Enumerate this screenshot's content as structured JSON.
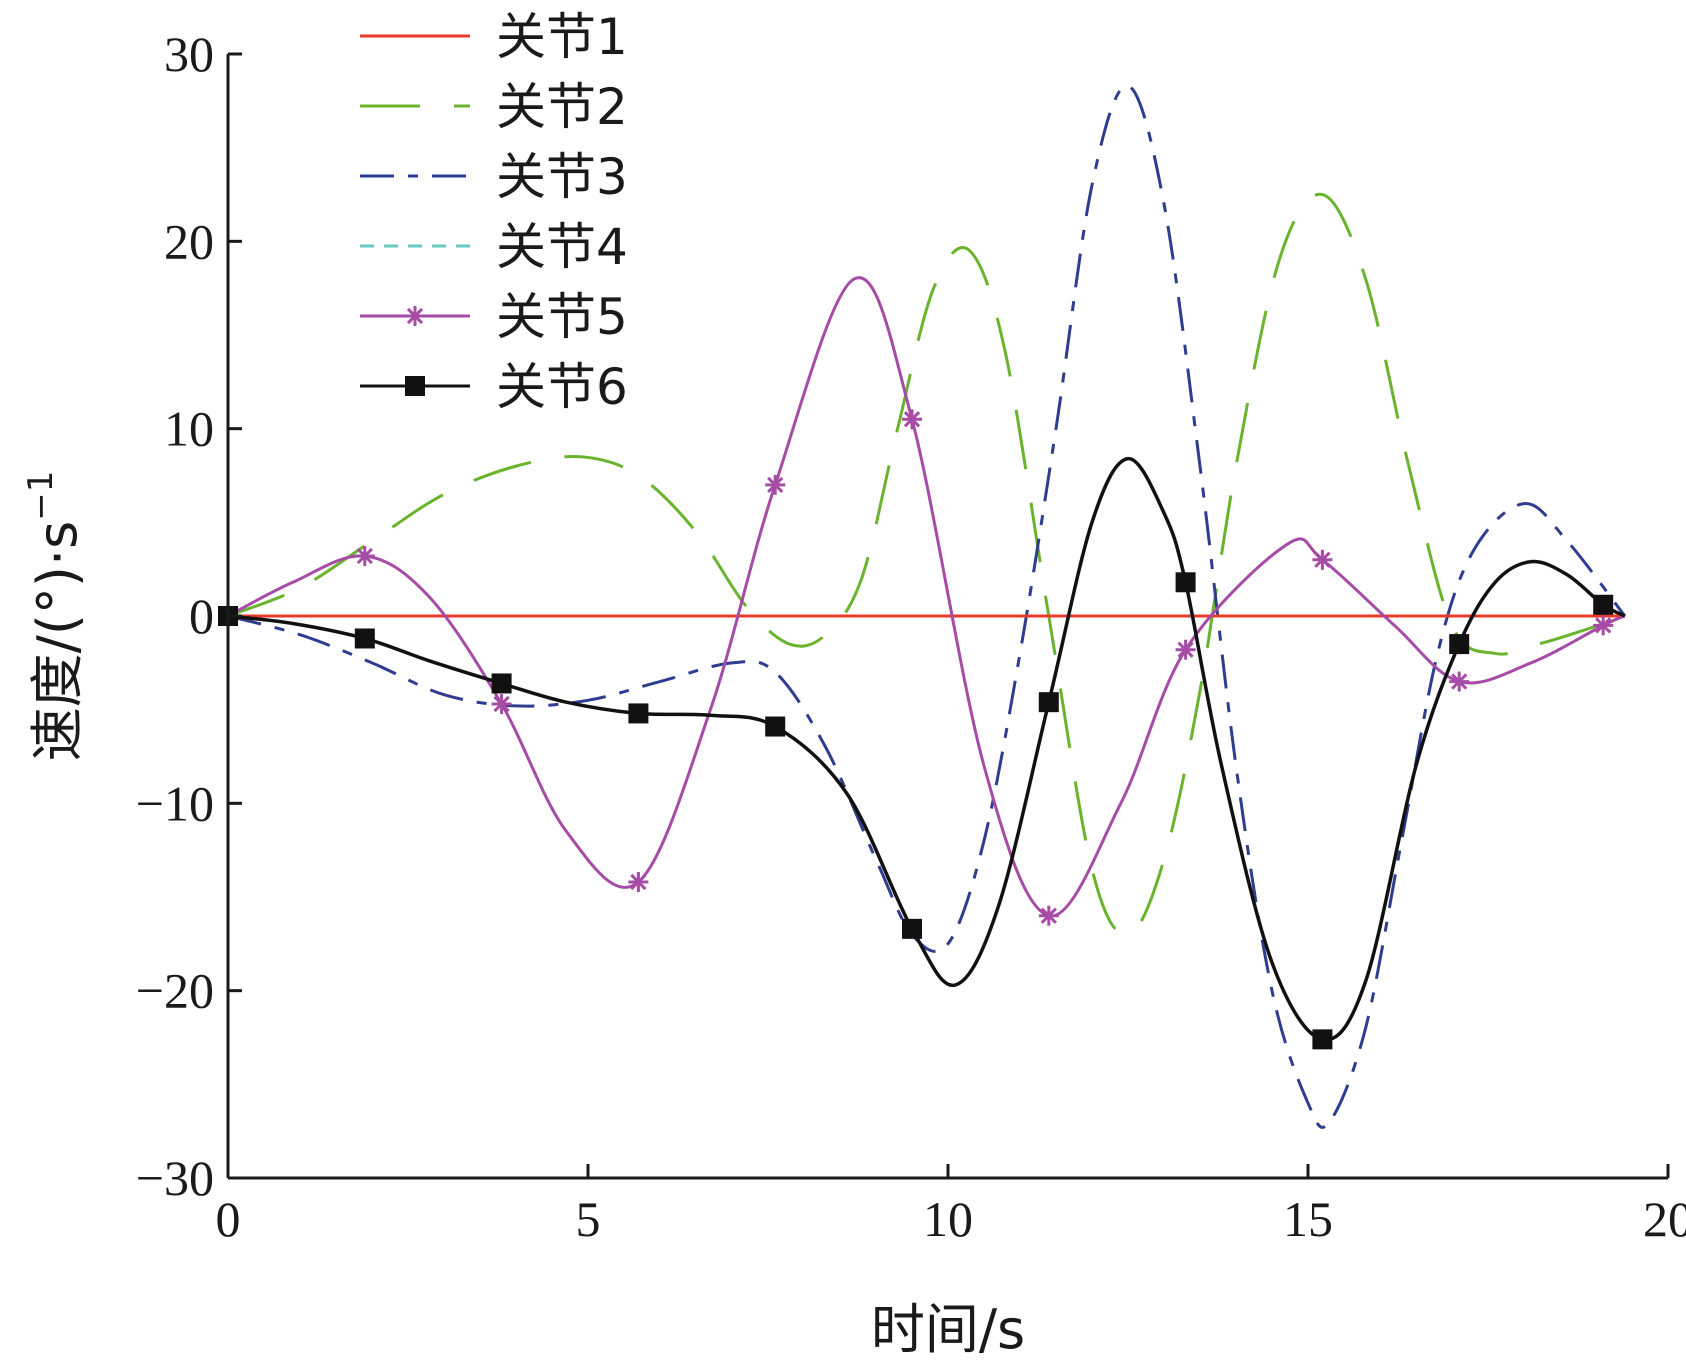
{
  "chart_data": {
    "type": "line",
    "title": "",
    "xlabel": "时间/s",
    "ylabel": "速度/(°)·s",
    "ylabel_superscript": "−1",
    "xlim": [
      0,
      20
    ],
    "ylim": [
      -30,
      30
    ],
    "x_ticks": [
      0,
      5,
      10,
      15,
      20
    ],
    "x_tick_labels": [
      "0",
      "5",
      "10",
      "15",
      "20"
    ],
    "y_ticks": [
      30,
      20,
      10,
      0,
      -10,
      -20,
      -30
    ],
    "y_tick_labels": [
      "30",
      "20",
      "10",
      "0",
      "−10",
      "−20",
      "−30"
    ],
    "grid": false,
    "legend_position": "top-left",
    "series": [
      {
        "name": "关节1",
        "color": "#e8392a",
        "style": "solid",
        "marker": "none",
        "x": [
          0,
          19.4
        ],
        "y": [
          0,
          0
        ]
      },
      {
        "name": "关节2",
        "color": "#6ab42d",
        "style": "long-dash",
        "marker": "none",
        "x": [
          0,
          1.0,
          2.0,
          3.0,
          4.0,
          4.9,
          5.7,
          6.5,
          7.2,
          7.8,
          8.3,
          8.8,
          9.3,
          9.8,
          10.3,
          10.8,
          11.4,
          12.0,
          12.5,
          13.0,
          13.5,
          14.0,
          14.6,
          15.2,
          15.8,
          16.4,
          17.0,
          17.6,
          18.2,
          18.8,
          19.4
        ],
        "y": [
          0,
          1.5,
          4.0,
          6.5,
          8.0,
          8.5,
          7.5,
          4.5,
          0.5,
          -1.5,
          -1.0,
          2.0,
          10.0,
          17.5,
          19.5,
          14.0,
          0.0,
          -13.5,
          -17.0,
          -13.0,
          -4.0,
          8.0,
          19.0,
          22.5,
          18.0,
          8.0,
          -0.5,
          -2.0,
          -1.5,
          -0.8,
          0
        ]
      },
      {
        "name": "关节3",
        "color": "#2e3d8f",
        "style": "dash-dot",
        "marker": "none",
        "x": [
          0,
          1.0,
          2.0,
          3.0,
          4.0,
          5.0,
          6.0,
          7.0,
          7.6,
          8.3,
          9.0,
          9.5,
          10.0,
          10.5,
          11.0,
          11.5,
          12.0,
          12.5,
          13.0,
          13.5,
          14.0,
          14.5,
          15.0,
          15.3,
          15.8,
          16.3,
          16.8,
          17.3,
          18.0,
          18.6,
          19.4
        ],
        "y": [
          0,
          -1.0,
          -2.5,
          -4.2,
          -4.8,
          -4.5,
          -3.5,
          -2.5,
          -3.0,
          -7.0,
          -13.0,
          -17.0,
          -17.5,
          -12.0,
          -2.0,
          10.0,
          23.0,
          28.3,
          22.0,
          8.0,
          -8.0,
          -20.0,
          -26.0,
          -27.0,
          -22.0,
          -12.0,
          -2.0,
          3.5,
          6.0,
          4.0,
          0
        ]
      },
      {
        "name": "关节4",
        "color": "#6ec6c4",
        "style": "short-dash",
        "marker": "none",
        "x": [
          0,
          19.4
        ],
        "y": [
          0,
          0
        ]
      },
      {
        "name": "关节5",
        "color": "#a64ca6",
        "style": "solid",
        "marker": "asterisk",
        "x": [
          0,
          0.9,
          1.9,
          2.8,
          3.8,
          4.7,
          5.7,
          6.7,
          7.6,
          8.7,
          9.5,
          10.5,
          11.4,
          12.4,
          13.3,
          14.7,
          15.2,
          16.2,
          17.1,
          18.1,
          19.1,
          19.4
        ],
        "y": [
          0,
          1.8,
          3.2,
          1.0,
          -4.7,
          -11.5,
          -14.2,
          -5.0,
          7.0,
          18.0,
          10.5,
          -8.0,
          -16.0,
          -10.0,
          -1.8,
          3.8,
          3.0,
          -0.5,
          -3.5,
          -2.5,
          -0.5,
          0
        ],
        "marker_x": [
          1.9,
          3.8,
          5.7,
          7.6,
          9.5,
          11.4,
          13.3,
          15.2,
          17.1,
          19.1
        ],
        "marker_y": [
          3.2,
          -4.7,
          -14.2,
          7.0,
          10.5,
          -16.0,
          -1.8,
          3.0,
          -3.5,
          -0.5
        ]
      },
      {
        "name": "关节6",
        "color": "#111111",
        "style": "solid",
        "marker": "square",
        "x": [
          0,
          0.9,
          1.9,
          2.8,
          3.8,
          4.7,
          5.7,
          6.7,
          7.6,
          8.6,
          9.5,
          10.1,
          10.7,
          11.4,
          12.0,
          12.5,
          13.0,
          13.3,
          13.8,
          14.5,
          15.2,
          15.8,
          16.5,
          17.1,
          17.6,
          18.1,
          18.6,
          19.1,
          19.4
        ],
        "y": [
          0,
          -0.4,
          -1.2,
          -2.4,
          -3.6,
          -4.6,
          -5.2,
          -5.3,
          -5.9,
          -9.5,
          -16.7,
          -19.7,
          -15.5,
          -4.6,
          5.0,
          8.4,
          5.5,
          1.8,
          -8.0,
          -18.5,
          -22.6,
          -19.5,
          -8.0,
          -1.5,
          1.8,
          2.9,
          2.2,
          0.6,
          0
        ],
        "marker_x": [
          0,
          1.9,
          3.8,
          5.7,
          7.6,
          9.5,
          11.4,
          13.3,
          15.2,
          17.1,
          19.1
        ],
        "marker_y": [
          0,
          -1.2,
          -3.6,
          -5.2,
          -5.9,
          -16.7,
          -4.6,
          1.8,
          -22.6,
          -1.5,
          0.6
        ]
      }
    ]
  }
}
